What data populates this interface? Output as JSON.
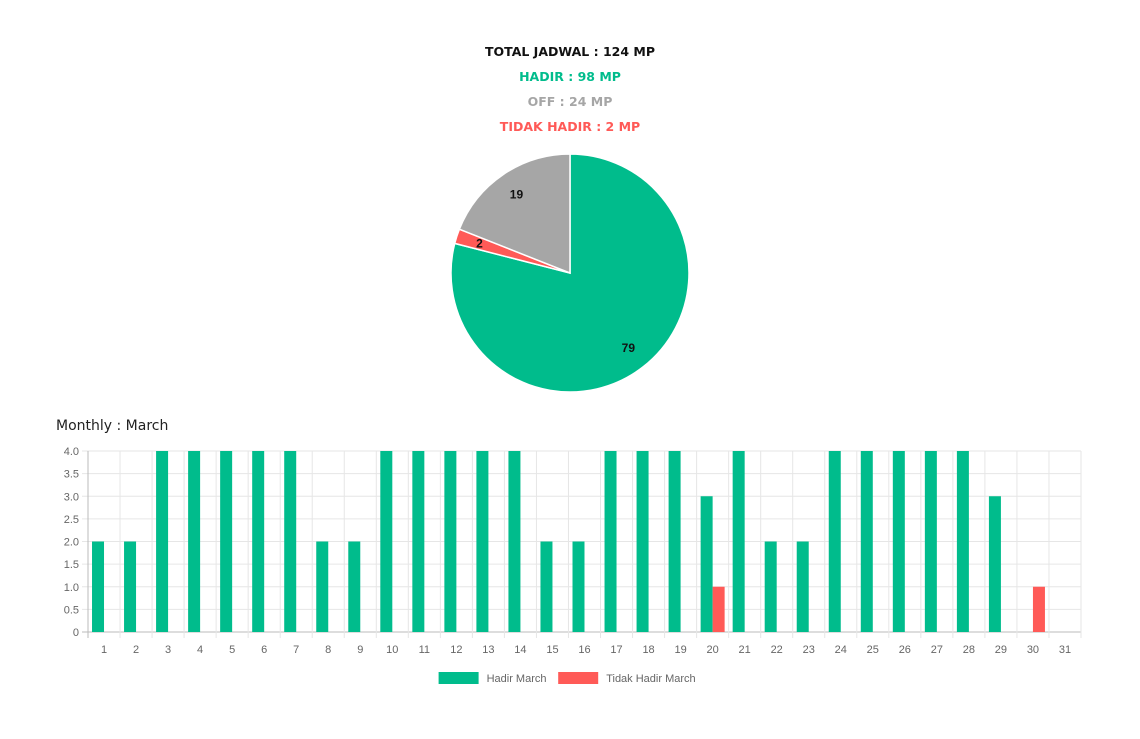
{
  "colors": {
    "hadir": "#00bc8c",
    "off": "#a6a6a6",
    "tidak_hadir": "#ff5a57",
    "total": "#111111"
  },
  "summary": {
    "total": "TOTAL JADWAL : 124 MP",
    "hadir": "HADIR : 98 MP",
    "off": "OFF : 24 MP",
    "tidak_hadir": "TIDAK HADIR : 2 MP"
  },
  "monthly": {
    "title": "Monthly : March"
  },
  "chart_data": [
    {
      "type": "pie",
      "slices": [
        {
          "label": "79",
          "value": 79,
          "color": "#00bc8c"
        },
        {
          "label": "2",
          "value": 2,
          "color": "#ff5a57"
        },
        {
          "label": "19",
          "value": 19,
          "color": "#a6a6a6"
        }
      ]
    },
    {
      "type": "bar",
      "categories": [
        "1",
        "2",
        "3",
        "4",
        "5",
        "6",
        "7",
        "8",
        "9",
        "10",
        "11",
        "12",
        "13",
        "14",
        "15",
        "16",
        "17",
        "18",
        "19",
        "20",
        "21",
        "22",
        "23",
        "24",
        "25",
        "26",
        "27",
        "28",
        "29",
        "30",
        "31"
      ],
      "ylim": [
        0,
        4
      ],
      "yticks": [
        "0",
        "0.5",
        "1.0",
        "1.5",
        "2.0",
        "2.5",
        "3.0",
        "3.5",
        "4.0"
      ],
      "grid": true,
      "legend_position": "bottom",
      "series": [
        {
          "name": "Hadir March",
          "color": "#00bc8c",
          "values": [
            2,
            2,
            4,
            4,
            4,
            4,
            4,
            2,
            2,
            4,
            4,
            4,
            4,
            4,
            2,
            2,
            4,
            4,
            4,
            3,
            4,
            2,
            2,
            4,
            4,
            4,
            4,
            4,
            3,
            0,
            0
          ]
        },
        {
          "name": "Tidak Hadir March",
          "color": "#ff5a57",
          "values": [
            0,
            0,
            0,
            0,
            0,
            0,
            0,
            0,
            0,
            0,
            0,
            0,
            0,
            0,
            0,
            0,
            0,
            0,
            0,
            1,
            0,
            0,
            0,
            0,
            0,
            0,
            0,
            0,
            0,
            1,
            0
          ]
        }
      ]
    }
  ]
}
